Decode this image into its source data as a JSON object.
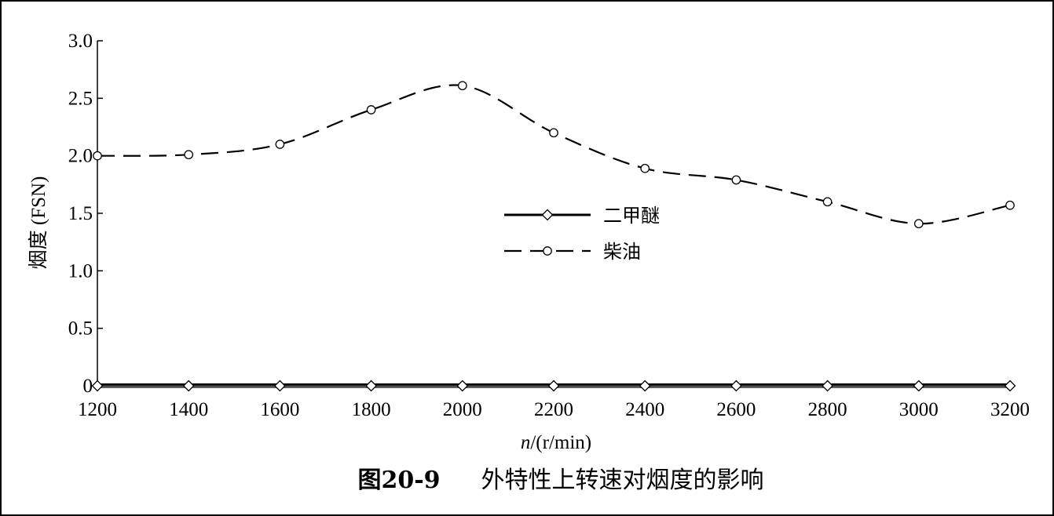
{
  "chart_data": {
    "type": "line",
    "title": "",
    "xlabel_var": "n",
    "xlabel_unit": "/(r/min)",
    "ylabel": "烟度 (FSN)",
    "x": [
      1200,
      1400,
      1600,
      1800,
      2000,
      2200,
      2400,
      2600,
      2800,
      3000,
      3200
    ],
    "xlim": [
      1200,
      3200
    ],
    "ylim": [
      0,
      3.0
    ],
    "xticks": [
      "1200",
      "1400",
      "1600",
      "1800",
      "2000",
      "2200",
      "2400",
      "2600",
      "2800",
      "3000",
      "3200"
    ],
    "yticks": [
      {
        "value": 0,
        "label": "0"
      },
      {
        "value": 0.5,
        "label": "0.5"
      },
      {
        "value": 1.0,
        "label": "1.0"
      },
      {
        "value": 1.5,
        "label": "1.5"
      },
      {
        "value": 2.0,
        "label": "2.0"
      },
      {
        "value": 2.5,
        "label": "2.5"
      },
      {
        "value": 3.0,
        "label": "3.0"
      }
    ],
    "series": [
      {
        "name": "二甲醚",
        "marker": "diamond",
        "line_style": "solid",
        "values": [
          0,
          0,
          0,
          0,
          0,
          0,
          0,
          0,
          0,
          0,
          0
        ]
      },
      {
        "name": "柴油",
        "marker": "circle",
        "line_style": "dashed",
        "values": [
          2.0,
          2.01,
          2.1,
          2.4,
          2.61,
          2.2,
          1.89,
          1.79,
          1.6,
          1.41,
          1.57
        ]
      }
    ],
    "legend_position": "center-right",
    "grid": false
  },
  "caption": {
    "number": "图20-9",
    "text": "外特性上转速对烟度的影响"
  },
  "colors": {
    "line": "#000000",
    "marker_fill": "#ffffff",
    "background": "#ffffff"
  }
}
